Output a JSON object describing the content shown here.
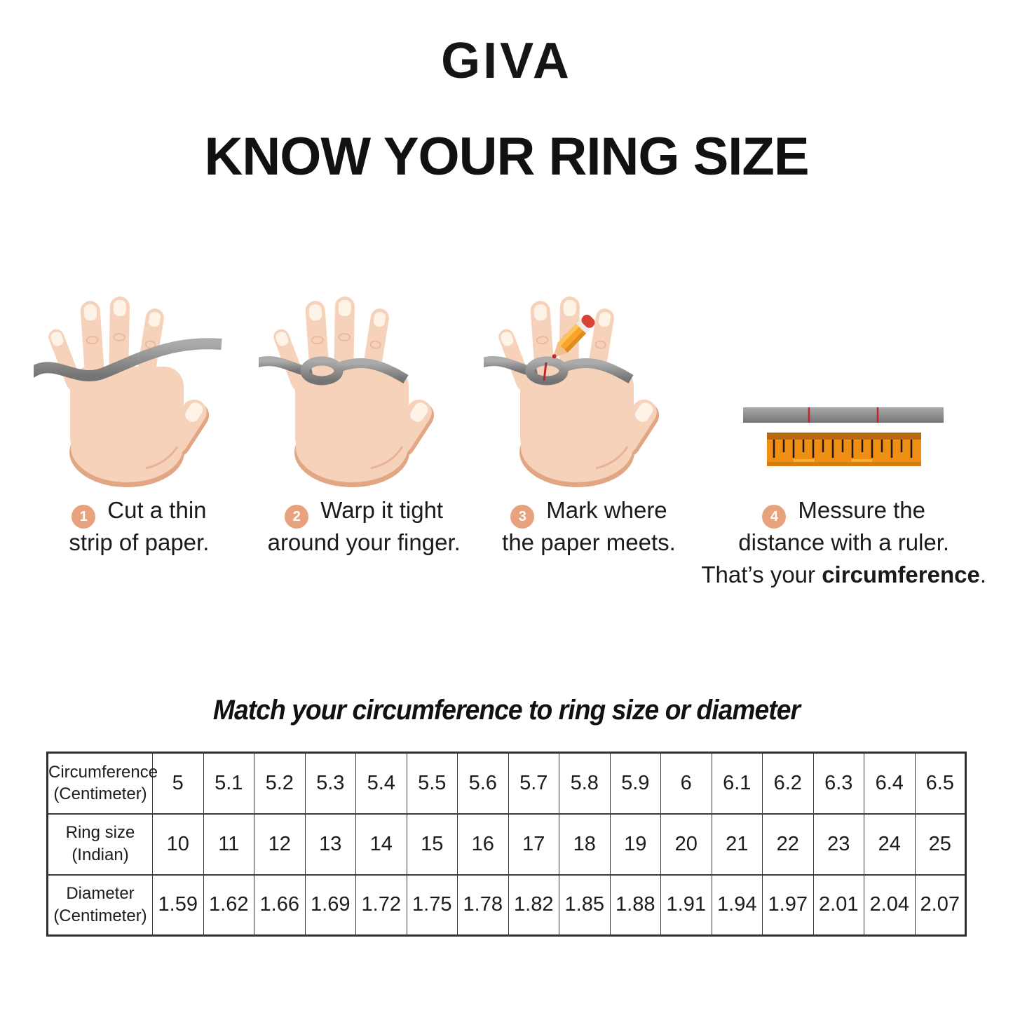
{
  "brand": "GIVA",
  "title": "KNOW YOUR RING SIZE",
  "steps": [
    {
      "number": "1",
      "line1": "Cut a thin",
      "line2": "strip of paper."
    },
    {
      "number": "2",
      "line1": "Warp it tight",
      "line2": "around your finger."
    },
    {
      "number": "3",
      "line1": "Mark where",
      "line2": "the paper meets."
    },
    {
      "number": "4",
      "line1": "Messure the",
      "line2": "distance with a ruler.",
      "line3_normal": "That’s your ",
      "line3_bold": "circumference",
      "line3_end": "."
    }
  ],
  "illustrations": {
    "step1": "hand-with-paper-strip",
    "step2": "hand-strip-wrapped-around-finger",
    "step3": "hand-strip-pencil-marking",
    "step4": "marked-paper-strip-and-ruler"
  },
  "match_heading": "Match your circumference to ring size or diameter",
  "size_table": {
    "rows": [
      {
        "header": "Circumference\n(Centimeter)",
        "values": [
          "5",
          "5.1",
          "5.2",
          "5.3",
          "5.4",
          "5.5",
          "5.6",
          "5.7",
          "5.8",
          "5.9",
          "6",
          "6.1",
          "6.2",
          "6.3",
          "6.4",
          "6.5"
        ]
      },
      {
        "header": "Ring size\n(Indian)",
        "values": [
          "10",
          "11",
          "12",
          "13",
          "14",
          "15",
          "16",
          "17",
          "18",
          "19",
          "20",
          "21",
          "22",
          "23",
          "24",
          "25"
        ]
      },
      {
        "header": "Diameter\n(Centimeter)",
        "values": [
          "1.59",
          "1.62",
          "1.66",
          "1.69",
          "1.72",
          "1.75",
          "1.78",
          "1.82",
          "1.85",
          "1.88",
          "1.91",
          "1.94",
          "1.97",
          "2.01",
          "2.04",
          "2.07"
        ]
      }
    ]
  },
  "colors": {
    "step_circle": "#E8A37E",
    "skin": "#F6D2BA",
    "skin_shadow": "#E2A685",
    "strip_gray": "#8E8E8E",
    "ruler_orange": "#EE8E13",
    "mark_red": "#C0272D",
    "pencil_yellow": "#F9A42B",
    "text": "#1A1A1A"
  }
}
